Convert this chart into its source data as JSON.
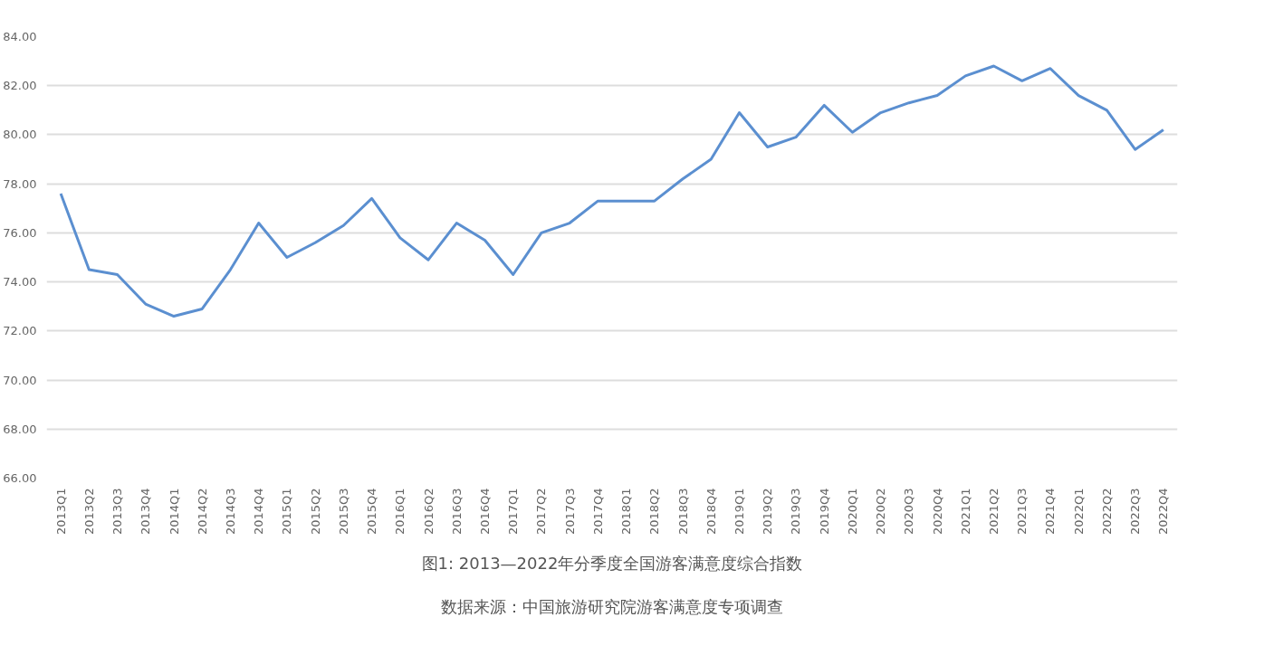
{
  "chart_data": {
    "type": "line",
    "title": "图1: 2013—2022年分季度全国游客满意度综合指数",
    "annotations": [
      "数据来源：中国旅游研究院游客满意度专项调查"
    ],
    "categories": [
      "2013Q1",
      "2013Q2",
      "2013Q3",
      "2013Q4",
      "2014Q1",
      "2014Q2",
      "2014Q3",
      "2014Q4",
      "2015Q1",
      "2015Q2",
      "2015Q3",
      "2015Q4",
      "2016Q1",
      "2016Q2",
      "2016Q3",
      "2016Q4",
      "2017Q1",
      "2017Q2",
      "2017Q3",
      "2017Q4",
      "2018Q1",
      "2018Q2",
      "2018Q3",
      "2018Q4",
      "2019Q1",
      "2019Q2",
      "2019Q3",
      "2019Q4",
      "2020Q1",
      "2020Q2",
      "2020Q3",
      "2020Q4",
      "2021Q1",
      "2021Q2",
      "2021Q3",
      "2021Q4",
      "2022Q1",
      "2022Q2",
      "2022Q3",
      "2022Q4"
    ],
    "series": [
      {
        "color": "#5b8fd0",
        "values": [
          77.6,
          74.5,
          74.3,
          73.1,
          72.6,
          72.9,
          74.5,
          76.4,
          75.0,
          75.6,
          76.3,
          77.4,
          75.8,
          74.9,
          76.4,
          75.7,
          74.3,
          76.0,
          76.4,
          77.3,
          77.3,
          77.3,
          78.2,
          79.0,
          80.9,
          79.5,
          79.9,
          81.2,
          80.1,
          80.9,
          81.3,
          81.6,
          82.4,
          82.8,
          82.2,
          82.7,
          81.6,
          81.0,
          79.4,
          80.2
        ]
      }
    ],
    "ylim": [
      66,
      84
    ],
    "yticks": [
      {
        "value": 66,
        "label": "66.00"
      },
      {
        "value": 68,
        "label": "68.00"
      },
      {
        "value": 70,
        "label": "70.00"
      },
      {
        "value": 72,
        "label": "72.00"
      },
      {
        "value": 74,
        "label": "74.00"
      },
      {
        "value": 76,
        "label": "76.00"
      },
      {
        "value": 78,
        "label": "78.00"
      },
      {
        "value": 80,
        "label": "80.00"
      },
      {
        "value": 82,
        "label": "82.00"
      },
      {
        "value": 84,
        "label": "84.00"
      }
    ],
    "grid": "y",
    "marker": "none",
    "line_style": "solid"
  }
}
